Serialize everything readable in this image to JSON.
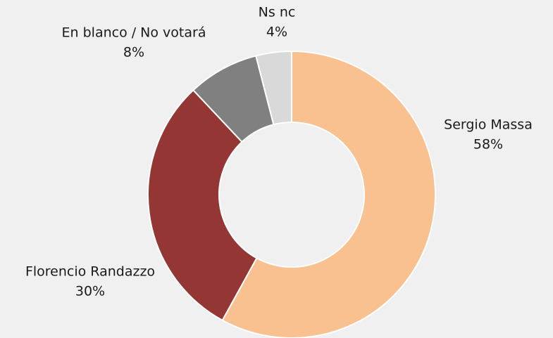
{
  "chart_data": {
    "type": "donut",
    "categories": [
      "Sergio Massa",
      "Florencio Randazzo",
      "En blanco / No votará",
      "Ns nc"
    ],
    "values": [
      58,
      30,
      8,
      4
    ],
    "value_labels": [
      "58%",
      "30%",
      "8%",
      "4%"
    ],
    "colors": [
      "#f9c090",
      "#943634",
      "#808080",
      "#d9d9d9"
    ]
  }
}
